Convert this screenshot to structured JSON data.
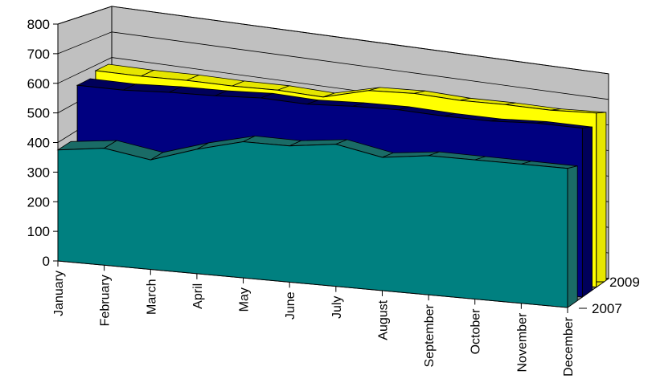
{
  "chart_data": {
    "type": "area",
    "subtype": "3d-area",
    "categories": [
      "January",
      "February",
      "March",
      "April",
      "May",
      "June",
      "July",
      "August",
      "September",
      "October",
      "November",
      "December"
    ],
    "ylim": [
      0,
      800
    ],
    "yticks": [
      0,
      100,
      200,
      300,
      400,
      500,
      600,
      700,
      800
    ],
    "series": [
      {
        "values": [
          375,
          395,
          370,
          420,
          460,
          460,
          480,
          450,
          470,
          470,
          470,
          470
        ]
      },
      {
        "name": "2007",
        "values": [
          560,
          560,
          570,
          575,
          585,
          580,
          590,
          595,
          590,
          590,
          600,
          600
        ]
      },
      {
        "name": "2009",
        "values": [
          580,
          580,
          585,
          585,
          590,
          585,
          630,
          640,
          635,
          640,
          640,
          650
        ]
      }
    ],
    "depth_labels": [
      "2009",
      "2007"
    ],
    "colors": {
      "front": "#008080",
      "front_top": "#1a6b66",
      "middle": "#000080",
      "middle_top": "#00005a",
      "back": "#ffff00",
      "back_top": "#e6e600",
      "wall": "#c0c0c0",
      "floor": "#808080",
      "gridline": "#000000"
    },
    "grid": true,
    "legend": "none"
  }
}
